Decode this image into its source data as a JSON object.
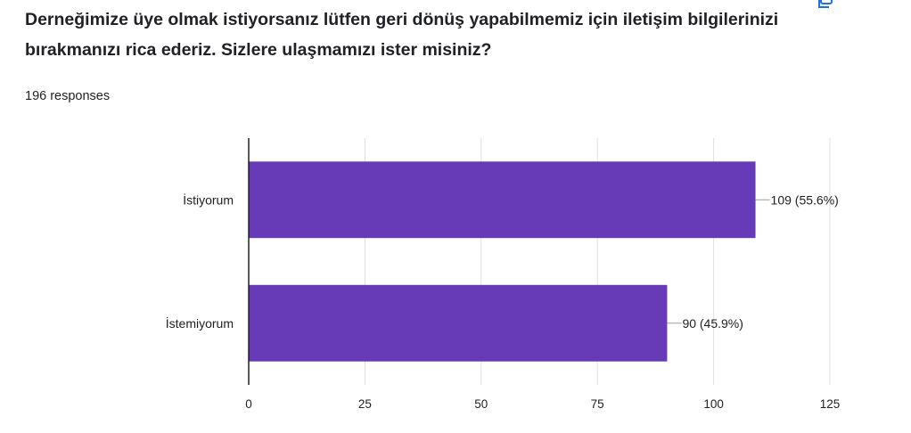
{
  "question": {
    "title": "Derneğimize üye olmak istiyorsanız lütfen geri dönüş yapabilmemiz için iletişim bilgilerinizi bırakmanızı rica ederiz. Sizlere ulaşmamızı ister misiniz?",
    "responses_label": "196 responses"
  },
  "toolbar": {
    "copy_icon": "copy-chart-icon",
    "more_icon": "more-options-icon"
  },
  "colors": {
    "bar": "#673ab7",
    "axis": "#202124",
    "grid": "#e0e0e0"
  },
  "chart_data": {
    "type": "bar",
    "orientation": "horizontal",
    "categories": [
      "İstiyorum",
      "İstemiyorum"
    ],
    "values": [
      109,
      90
    ],
    "data_labels": [
      "109 (55.6%)",
      "90 (45.9%)"
    ],
    "xlim": [
      0,
      125
    ],
    "xticks": [
      0,
      25,
      50,
      75,
      100,
      125
    ],
    "grid": true
  }
}
